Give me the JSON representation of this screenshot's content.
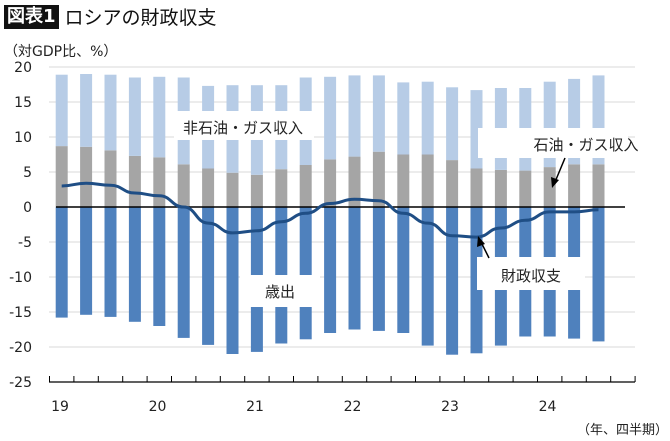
{
  "title": {
    "badge": "図表1",
    "text": "ロシアの財政収支"
  },
  "chart_data": {
    "type": "bar",
    "stacked": true,
    "ylabel": "（対GDP比、%）",
    "xlabel": "（年、四半期）",
    "ylim": [
      -25,
      20
    ],
    "yticks": [
      "20",
      "15",
      "10",
      "5",
      "0",
      "-5",
      "-10",
      "-15",
      "-20",
      "-25"
    ],
    "ytick_values": [
      20,
      15,
      10,
      5,
      0,
      -5,
      -10,
      -15,
      -20,
      -25
    ],
    "xtick_labels": [
      "19",
      "20",
      "21",
      "22",
      "23",
      "24"
    ],
    "grid": true,
    "categories": [
      "2019Q1",
      "2019Q2",
      "2019Q3",
      "2019Q4",
      "2020Q1",
      "2020Q2",
      "2020Q3",
      "2020Q4",
      "2021Q1",
      "2021Q2",
      "2021Q3",
      "2021Q4",
      "2022Q1",
      "2022Q2",
      "2022Q3",
      "2022Q4",
      "2023Q1",
      "2023Q2",
      "2023Q3",
      "2023Q4",
      "2024Q1",
      "2024Q2",
      "2024Q3"
    ],
    "series": [
      {
        "name": "石油・ガス収入",
        "kind": "bar",
        "color": "#a5a5a5",
        "values": [
          8.7,
          8.6,
          8.1,
          7.3,
          7.1,
          6.1,
          5.5,
          4.9,
          4.6,
          5.4,
          6.0,
          6.8,
          7.2,
          7.9,
          7.5,
          7.5,
          6.7,
          5.5,
          5.3,
          5.2,
          5.7,
          6.1,
          6.1
        ]
      },
      {
        "name": "非石油・ガス収入",
        "kind": "bar",
        "color": "#b7cce6",
        "values": [
          10.2,
          10.4,
          10.8,
          11.2,
          11.5,
          12.4,
          11.8,
          12.5,
          12.8,
          12.0,
          12.5,
          11.8,
          11.6,
          10.9,
          10.3,
          10.4,
          10.4,
          11.2,
          11.7,
          11.8,
          12.2,
          12.2,
          12.7
        ]
      },
      {
        "name": "歳出",
        "kind": "bar",
        "color": "#4f81bd",
        "values": [
          -15.8,
          -15.4,
          -15.7,
          -16.4,
          -17.0,
          -18.7,
          -19.7,
          -21.0,
          -20.7,
          -19.5,
          -18.9,
          -18.0,
          -17.5,
          -17.7,
          -18.0,
          -19.8,
          -21.1,
          -20.9,
          -19.8,
          -18.5,
          -18.5,
          -18.8,
          -19.2
        ]
      },
      {
        "name": "財政収支",
        "kind": "line",
        "color": "#1f4e85",
        "values": [
          3.0,
          3.4,
          3.1,
          2.0,
          1.6,
          0.0,
          -2.3,
          -3.7,
          -3.4,
          -2.1,
          -0.9,
          0.5,
          1.1,
          0.9,
          -0.9,
          -2.3,
          -4.1,
          -4.3,
          -3.0,
          -1.9,
          -0.7,
          -0.7,
          -0.4
        ]
      }
    ],
    "annotations": {
      "non_oil": "非石油・ガス収入",
      "oil": "石油・ガス収入",
      "spend": "歳出",
      "balance": "財政収支"
    }
  }
}
